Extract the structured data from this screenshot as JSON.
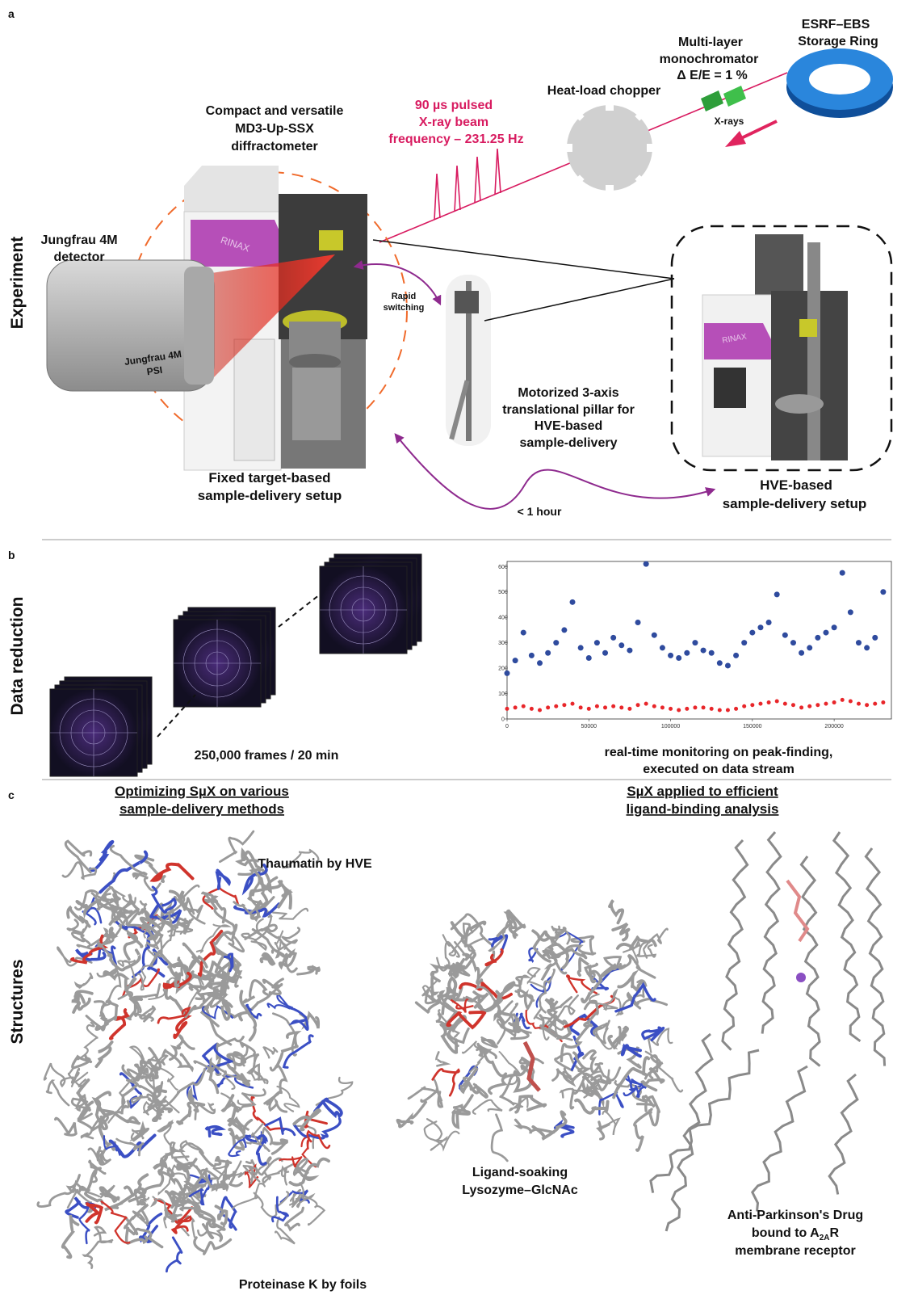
{
  "panel_a": {
    "label": "a",
    "row_label": "Experiment",
    "storage_ring": [
      "ESRF–EBS",
      "Storage Ring"
    ],
    "monochromator": [
      "Multi-layer",
      "monochromator",
      "Δ E/E = 1 %"
    ],
    "xrays": "X-rays",
    "chopper": "Heat-load chopper",
    "beam": [
      "90 µs pulsed",
      "X-ray beam",
      "frequency – 231.25 Hz"
    ],
    "diffractometer": [
      "Compact and versatile",
      "MD3-Up-SSX",
      "diffractometer"
    ],
    "detector": [
      "Jungfrau 4M",
      "detector"
    ],
    "detector_body": [
      "Jungfrau 4M",
      "PSI"
    ],
    "machine_brand": "RINAX",
    "switching": [
      "Rapid",
      "switching"
    ],
    "pillar": [
      "Motorized 3-axis",
      "translational pillar for",
      "HVE-based",
      "sample-delivery"
    ],
    "fixed_setup": [
      "Fixed target-based",
      "sample-delivery setup"
    ],
    "hve_setup": [
      "HVE-based",
      "sample-delivery setup"
    ],
    "switch_time": "< 1 hour"
  },
  "panel_b": {
    "label": "b",
    "row_label": "Data reduction",
    "frames": "250,000 frames / 20 min",
    "monitoring": [
      "real-time monitoring on peak-finding,",
      "executed on data stream"
    ]
  },
  "chart_data": {
    "type": "scatter",
    "x": [
      0,
      5000,
      10000,
      15000,
      20000,
      25000,
      30000,
      35000,
      40000,
      45000,
      50000,
      55000,
      60000,
      65000,
      70000,
      75000,
      80000,
      85000,
      90000,
      95000,
      100000,
      105000,
      110000,
      115000,
      120000,
      125000,
      130000,
      135000,
      140000,
      145000,
      150000,
      155000,
      160000,
      165000,
      170000,
      175000,
      180000,
      185000,
      190000,
      195000,
      200000,
      205000,
      210000,
      215000,
      220000,
      225000,
      230000
    ],
    "series": [
      {
        "color": "#2f4b9e",
        "values": [
          180,
          230,
          340,
          250,
          220,
          260,
          300,
          350,
          460,
          280,
          240,
          300,
          260,
          320,
          290,
          270,
          380,
          610,
          330,
          280,
          250,
          240,
          260,
          300,
          270,
          260,
          220,
          210,
          250,
          300,
          340,
          360,
          380,
          490,
          330,
          300,
          260,
          280,
          320,
          340,
          360,
          575,
          420,
          300,
          280,
          320,
          500
        ]
      },
      {
        "color": "#e8262a",
        "values": [
          40,
          45,
          50,
          40,
          35,
          45,
          50,
          55,
          60,
          45,
          40,
          50,
          45,
          50,
          45,
          40,
          55,
          60,
          50,
          45,
          40,
          35,
          40,
          45,
          45,
          40,
          35,
          35,
          40,
          50,
          55,
          60,
          65,
          70,
          60,
          55,
          45,
          50,
          55,
          60,
          65,
          75,
          70,
          60,
          55,
          60,
          65
        ]
      }
    ],
    "xlim": [
      0,
      235000
    ],
    "ylim": [
      0,
      620
    ],
    "xticks": [
      0,
      50000,
      100000,
      150000,
      200000
    ],
    "yticks": [
      0,
      100,
      200,
      300,
      400,
      500,
      600
    ]
  },
  "panel_c": {
    "label": "c",
    "row_label": "Structures",
    "left_heading": [
      "Optimizing SµX on various",
      "sample-delivery methods"
    ],
    "right_heading": [
      "SµX applied to efficient",
      "ligand-binding analysis"
    ],
    "thaumatin": "Thaumatin by HVE",
    "proteinase": "Proteinase K by foils",
    "lysozyme": [
      "Ligand-soaking",
      "Lysozyme–GlcNAc"
    ],
    "receptor": [
      "Anti-Parkinson's Drug",
      [
        "bound to A",
        "2A",
        "R"
      ],
      "membrane receptor"
    ]
  }
}
